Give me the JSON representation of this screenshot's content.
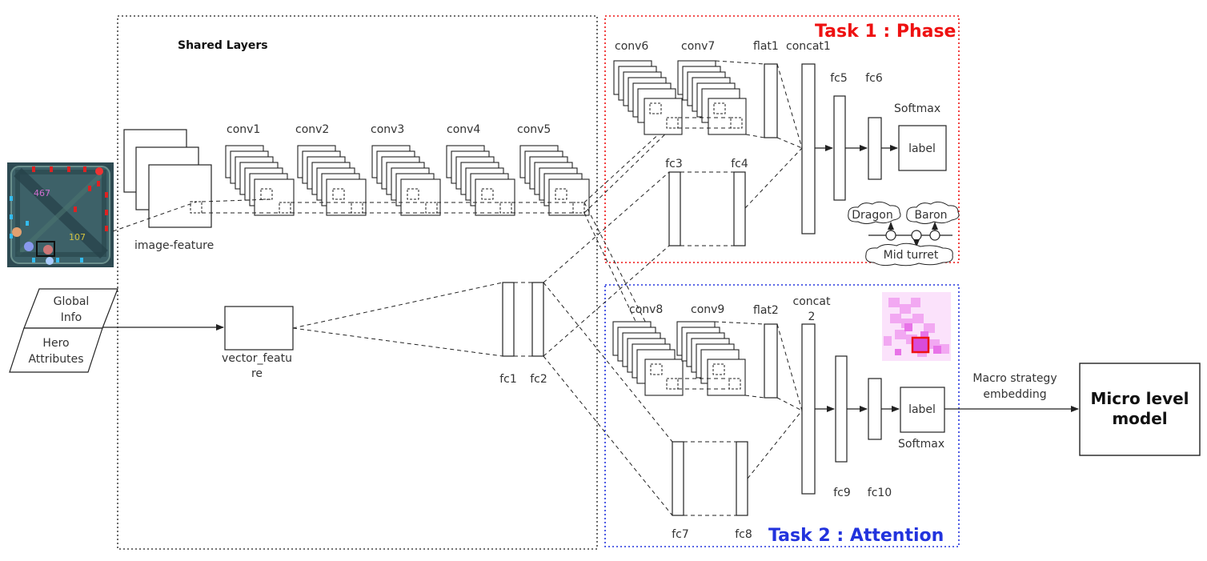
{
  "shared": {
    "title": "Shared Layers",
    "image_feature": "image-feature",
    "vector_feature_l1": "vector_featu",
    "vector_feature_l2": "re",
    "input_global_l1": "Global",
    "input_global_l2": "Info",
    "input_hero_l1": "Hero",
    "input_hero_l2": "Attributes",
    "conv1": "conv1",
    "conv2": "conv2",
    "conv3": "conv3",
    "conv4": "conv4",
    "conv5": "conv5",
    "fc1": "fc1",
    "fc2": "fc2",
    "minimap_num_a": "467",
    "minimap_num_b": "107"
  },
  "task1": {
    "title": "Task 1 : Phase",
    "conv6": "conv6",
    "conv7": "conv7",
    "flat1": "flat1",
    "concat1": "concat1",
    "fc3": "fc3",
    "fc4": "fc4",
    "fc5": "fc5",
    "fc6": "fc6",
    "softmax": "Softmax",
    "label": "label",
    "dragon": "Dragon",
    "baron": "Baron",
    "mid_turret": "Mid turret"
  },
  "task2": {
    "title": "Task 2 : Attention",
    "conv8": "conv8",
    "conv9": "conv9",
    "flat2": "flat2",
    "concat2_l1": "concat",
    "concat2_l2": "2",
    "fc7": "fc7",
    "fc8": "fc8",
    "fc9": "fc9",
    "fc10": "fc10",
    "softmax": "Softmax",
    "label": "label"
  },
  "output": {
    "embedding_l1": "Macro strategy",
    "embedding_l2": "embedding",
    "micro_l1": "Micro level",
    "micro_l2": "model"
  },
  "colors": {
    "task1": "#ee1111",
    "task2": "#2233dd",
    "shared_border": "#444444",
    "line": "#222222"
  }
}
